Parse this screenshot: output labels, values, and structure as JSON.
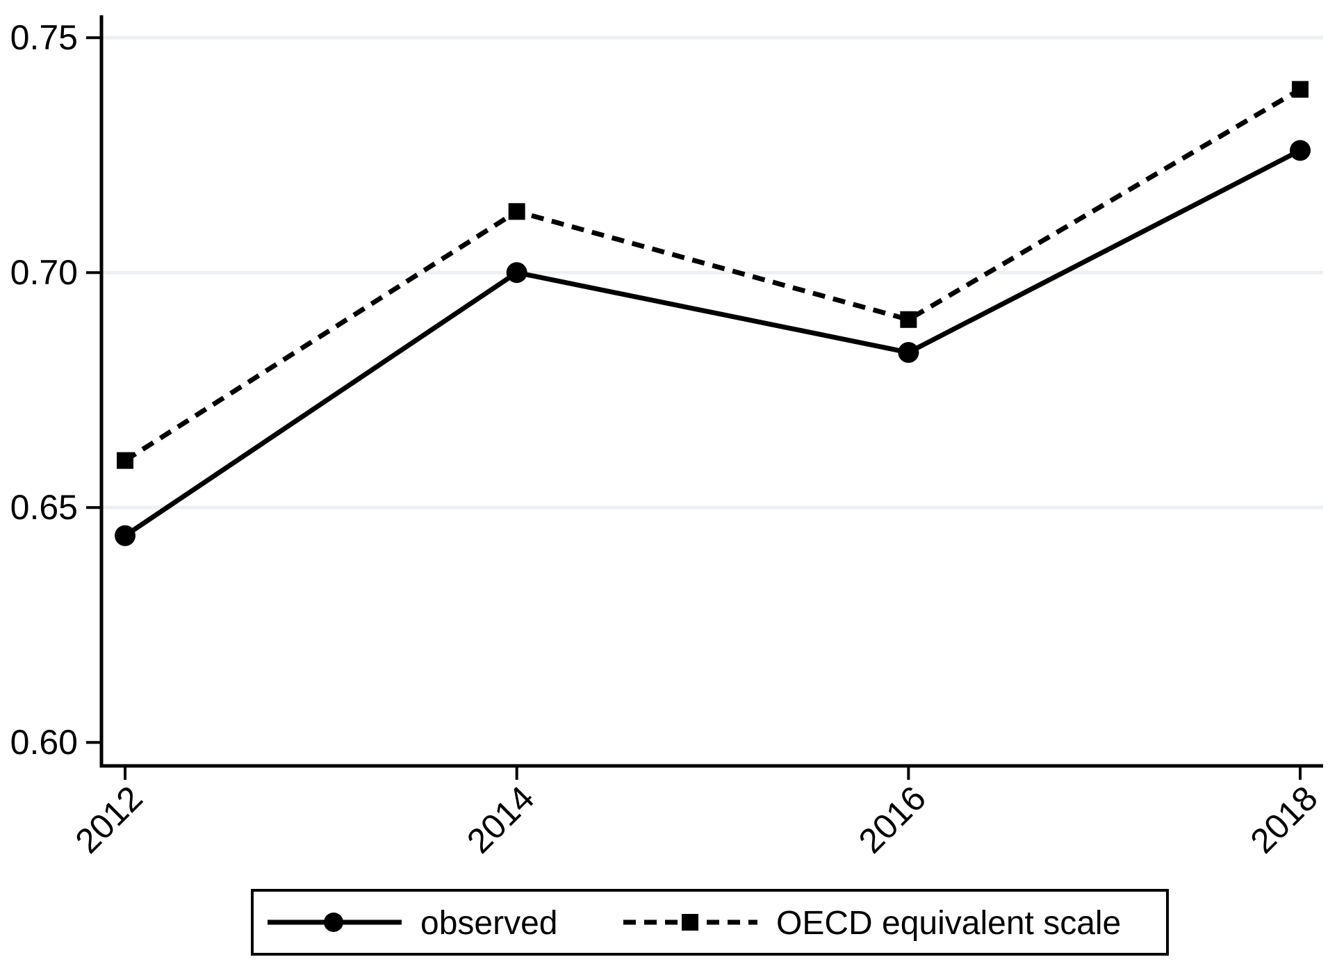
{
  "chart_data": {
    "type": "line",
    "title": "",
    "xlabel": "",
    "ylabel": "",
    "x": [
      2012,
      2014,
      2016,
      2018
    ],
    "x_tick_labels": [
      "2012",
      "2014",
      "2016",
      "2018"
    ],
    "x_tick_label_angle_deg": 45,
    "series": [
      {
        "name": "observed",
        "values": [
          0.644,
          0.7,
          0.683,
          0.726
        ],
        "line_style": "solid",
        "marker": "circle",
        "color": "#000000"
      },
      {
        "name": "OECD equivalent scale",
        "values": [
          0.66,
          0.713,
          0.69,
          0.739
        ],
        "line_style": "dashed",
        "marker": "square",
        "color": "#000000"
      }
    ],
    "ylim": [
      0.595,
      0.755
    ],
    "yticks": [
      0.6,
      0.65,
      0.7,
      0.75
    ],
    "ytick_labels": [
      "0.60",
      "0.65",
      "0.70",
      "0.75"
    ],
    "gridlines_at": [
      0.65,
      0.7,
      0.75
    ],
    "grid_on": true,
    "grid_color": "#eaf0f3",
    "axis_color": "#000000",
    "background_color": "#ffffff",
    "legend": {
      "position": "bottom-center",
      "border": true,
      "entries": [
        "observed",
        "OECD equivalent scale"
      ]
    }
  }
}
